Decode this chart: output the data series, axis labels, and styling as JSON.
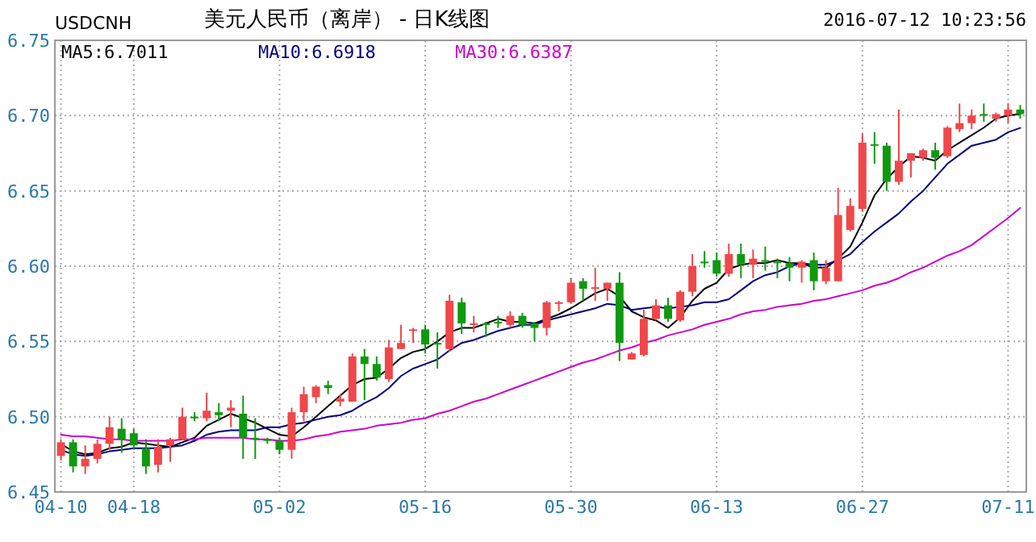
{
  "chart_data": {
    "type": "candlestick",
    "title": "美元人民币（离岸） - 日K线图",
    "subtitle": "USDCNH",
    "annotations": [
      "2016-07-12 10:23:56"
    ],
    "categories": [
      "04-10",
      null,
      null,
      null,
      null,
      null,
      "04-18",
      null,
      null,
      null,
      null,
      null,
      null,
      null,
      null,
      null,
      null,
      null,
      "05-02",
      null,
      null,
      null,
      null,
      null,
      null,
      null,
      null,
      null,
      null,
      null,
      "05-16",
      null,
      null,
      null,
      null,
      null,
      null,
      null,
      null,
      null,
      null,
      null,
      "05-30",
      null,
      null,
      null,
      null,
      null,
      null,
      null,
      null,
      null,
      null,
      null,
      "06-13",
      null,
      null,
      null,
      null,
      null,
      null,
      null,
      null,
      null,
      null,
      null,
      "06-27",
      null,
      null,
      null,
      null,
      null,
      null,
      null,
      null,
      null,
      null,
      null,
      "07-11",
      null
    ],
    "ohlc": [
      [
        6.474,
        6.485,
        6.471,
        6.483
      ],
      [
        6.483,
        6.485,
        6.463,
        6.467
      ],
      [
        6.467,
        6.481,
        6.462,
        6.472
      ],
      [
        6.472,
        6.485,
        6.469,
        6.482
      ],
      [
        6.482,
        6.5,
        6.478,
        6.493
      ],
      [
        6.492,
        6.499,
        6.476,
        6.485
      ],
      [
        6.489,
        6.492,
        6.478,
        6.481
      ],
      [
        6.479,
        6.485,
        6.462,
        6.467
      ],
      [
        6.468,
        6.485,
        6.463,
        6.48
      ],
      [
        6.481,
        6.486,
        6.47,
        6.485
      ],
      [
        6.485,
        6.506,
        6.485,
        6.5
      ],
      [
        6.5,
        6.503,
        6.497,
        6.499
      ],
      [
        6.499,
        6.516,
        6.497,
        6.504
      ],
      [
        6.503,
        6.509,
        6.497,
        6.501
      ],
      [
        6.504,
        6.511,
        6.493,
        6.506
      ],
      [
        6.502,
        6.514,
        6.472,
        6.486
      ],
      [
        6.486,
        6.499,
        6.472,
        6.485
      ],
      [
        6.485,
        6.486,
        6.482,
        6.484
      ],
      [
        6.484,
        6.486,
        6.475,
        6.478
      ],
      [
        6.478,
        6.506,
        6.472,
        6.503
      ],
      [
        6.503,
        6.52,
        6.497,
        6.515
      ],
      [
        6.513,
        6.521,
        6.509,
        6.52
      ],
      [
        6.521,
        6.524,
        6.515,
        6.519
      ],
      [
        6.51,
        6.515,
        6.507,
        6.512
      ],
      [
        6.51,
        6.542,
        6.51,
        6.54
      ],
      [
        6.54,
        6.545,
        6.511,
        6.535
      ],
      [
        6.535,
        6.54,
        6.524,
        6.526
      ],
      [
        6.525,
        6.551,
        6.523,
        6.546
      ],
      [
        6.545,
        6.561,
        6.545,
        6.549
      ],
      [
        6.557,
        6.559,
        6.549,
        6.558
      ],
      [
        6.558,
        6.561,
        6.542,
        6.548
      ],
      [
        6.549,
        6.556,
        6.532,
        6.548
      ],
      [
        6.545,
        6.581,
        6.543,
        6.577
      ],
      [
        6.576,
        6.579,
        6.555,
        6.562
      ],
      [
        6.561,
        6.567,
        6.556,
        6.562
      ],
      [
        6.562,
        6.563,
        6.553,
        6.561
      ],
      [
        6.563,
        6.567,
        6.559,
        6.562
      ],
      [
        6.561,
        6.57,
        6.559,
        6.567
      ],
      [
        6.567,
        6.569,
        6.559,
        6.561
      ],
      [
        6.562,
        6.563,
        6.55,
        6.559
      ],
      [
        6.559,
        6.577,
        6.554,
        6.576
      ],
      [
        6.575,
        6.577,
        6.57,
        6.576
      ],
      [
        6.576,
        6.592,
        6.575,
        6.589
      ],
      [
        6.59,
        6.592,
        6.577,
        6.585
      ],
      [
        6.585,
        6.599,
        6.577,
        6.586
      ],
      [
        6.585,
        6.589,
        6.577,
        6.589
      ],
      [
        6.589,
        6.596,
        6.537,
        6.549
      ],
      [
        6.538,
        6.543,
        6.538,
        6.542
      ],
      [
        6.541,
        6.571,
        6.54,
        6.565
      ],
      [
        6.565,
        6.578,
        6.564,
        6.574
      ],
      [
        6.574,
        6.579,
        6.563,
        6.565
      ],
      [
        6.564,
        6.584,
        6.563,
        6.583
      ],
      [
        6.583,
        6.608,
        6.58,
        6.6
      ],
      [
        6.603,
        6.61,
        6.599,
        6.602
      ],
      [
        6.604,
        6.609,
        6.593,
        6.595
      ],
      [
        6.595,
        6.615,
        6.593,
        6.608
      ],
      [
        6.608,
        6.615,
        6.592,
        6.601
      ],
      [
        6.601,
        6.611,
        6.592,
        6.605
      ],
      [
        6.604,
        6.613,
        6.597,
        6.603
      ],
      [
        6.603,
        6.605,
        6.592,
        6.602
      ],
      [
        6.602,
        6.606,
        6.59,
        6.599
      ],
      [
        6.599,
        6.604,
        6.589,
        6.603
      ],
      [
        6.604,
        6.609,
        6.584,
        6.59
      ],
      [
        6.59,
        6.604,
        6.588,
        6.599
      ],
      [
        6.59,
        6.652,
        6.59,
        6.634
      ],
      [
        6.624,
        6.645,
        6.623,
        6.64
      ],
      [
        6.638,
        6.688,
        6.636,
        6.682
      ],
      [
        6.681,
        6.689,
        6.668,
        6.68
      ],
      [
        6.68,
        6.682,
        6.65,
        6.656
      ],
      [
        6.656,
        6.704,
        6.654,
        6.67
      ],
      [
        6.67,
        6.675,
        6.659,
        6.675
      ],
      [
        6.672,
        6.678,
        6.67,
        6.677
      ],
      [
        6.677,
        6.682,
        6.664,
        6.672
      ],
      [
        6.673,
        6.693,
        6.672,
        6.692
      ],
      [
        6.691,
        6.708,
        6.689,
        6.695
      ],
      [
        6.695,
        6.704,
        6.691,
        6.7
      ],
      [
        6.701,
        6.708,
        6.696,
        6.7
      ],
      [
        6.698,
        6.702,
        6.696,
        6.701
      ],
      [
        6.7,
        6.708,
        6.695,
        6.704
      ],
      [
        6.704,
        6.707,
        6.698,
        6.701
      ]
    ],
    "series": [
      {
        "name": "MA5:6.7011",
        "type": "line",
        "color": "#000000",
        "values": [
          6.482,
          6.477,
          6.475,
          6.476,
          6.479,
          6.48,
          6.483,
          6.482,
          6.481,
          6.48,
          6.483,
          6.486,
          6.494,
          6.498,
          6.502,
          6.499,
          6.496,
          6.492,
          6.488,
          6.487,
          6.493,
          6.5,
          6.507,
          6.514,
          6.521,
          6.525,
          6.526,
          6.532,
          6.539,
          6.543,
          6.545,
          6.55,
          6.556,
          6.559,
          6.559,
          6.562,
          6.565,
          6.563,
          6.563,
          6.562,
          6.565,
          6.568,
          6.572,
          6.577,
          6.582,
          6.585,
          6.58,
          6.57,
          6.566,
          6.564,
          6.559,
          6.566,
          6.577,
          6.585,
          6.589,
          6.598,
          6.601,
          6.602,
          6.602,
          6.604,
          6.602,
          6.602,
          6.599,
          6.599,
          6.605,
          6.613,
          6.629,
          6.647,
          6.658,
          6.666,
          6.673,
          6.672,
          6.67,
          6.677,
          6.682,
          6.687,
          6.692,
          6.698,
          6.7,
          6.7011
        ]
      },
      {
        "name": "MA10:6.6918",
        "type": "line",
        "color": "#000080",
        "values": [
          6.478,
          6.475,
          6.474,
          6.475,
          6.477,
          6.478,
          6.479,
          6.479,
          6.479,
          6.48,
          6.481,
          6.484,
          6.488,
          6.49,
          6.491,
          6.491,
          6.491,
          6.493,
          6.493,
          6.495,
          6.496,
          6.498,
          6.5,
          6.501,
          6.504,
          6.509,
          6.513,
          6.519,
          6.527,
          6.532,
          6.535,
          6.538,
          6.544,
          6.549,
          6.551,
          6.554,
          6.557,
          6.559,
          6.561,
          6.561,
          6.564,
          6.566,
          6.568,
          6.57,
          6.572,
          6.575,
          6.574,
          6.571,
          6.572,
          6.573,
          6.572,
          6.573,
          6.574,
          6.576,
          6.576,
          6.578,
          6.584,
          6.59,
          6.594,
          6.596,
          6.6,
          6.602,
          6.601,
          6.601,
          6.604,
          6.608,
          6.616,
          6.623,
          6.629,
          6.635,
          6.643,
          6.65,
          6.659,
          6.668,
          6.674,
          6.68,
          6.682,
          6.684,
          6.689,
          6.6918
        ]
      },
      {
        "name": "MA30:6.6387",
        "type": "line",
        "color": "#cc00cc",
        "values": [
          6.488,
          6.487,
          6.487,
          6.486,
          6.485,
          6.485,
          6.484,
          6.484,
          6.484,
          6.484,
          6.485,
          6.485,
          6.486,
          6.486,
          6.486,
          6.486,
          6.485,
          6.485,
          6.484,
          6.484,
          6.485,
          6.487,
          6.488,
          6.49,
          6.491,
          6.492,
          6.494,
          6.495,
          6.496,
          6.498,
          6.499,
          6.502,
          6.504,
          6.507,
          6.51,
          6.512,
          6.515,
          6.518,
          6.521,
          6.524,
          6.527,
          6.53,
          6.533,
          6.536,
          6.538,
          6.541,
          6.544,
          6.546,
          6.549,
          6.551,
          6.554,
          6.556,
          6.558,
          6.561,
          6.563,
          6.565,
          6.568,
          6.57,
          6.571,
          6.573,
          6.574,
          6.575,
          6.577,
          6.578,
          6.58,
          6.582,
          6.584,
          6.587,
          6.589,
          6.592,
          6.596,
          6.599,
          6.603,
          6.607,
          6.61,
          6.614,
          6.62,
          6.626,
          6.632,
          6.6387
        ]
      }
    ],
    "ylim": [
      6.45,
      6.75
    ],
    "yticks": [
      6.45,
      {
        "value": 6.5,
        "label": "6.50"
      },
      6.55,
      {
        "value": 6.6,
        "label": "6.60"
      },
      6.65,
      {
        "value": 6.7,
        "label": "6.70"
      },
      6.75
    ],
    "grid": true,
    "legend": "top left"
  }
}
